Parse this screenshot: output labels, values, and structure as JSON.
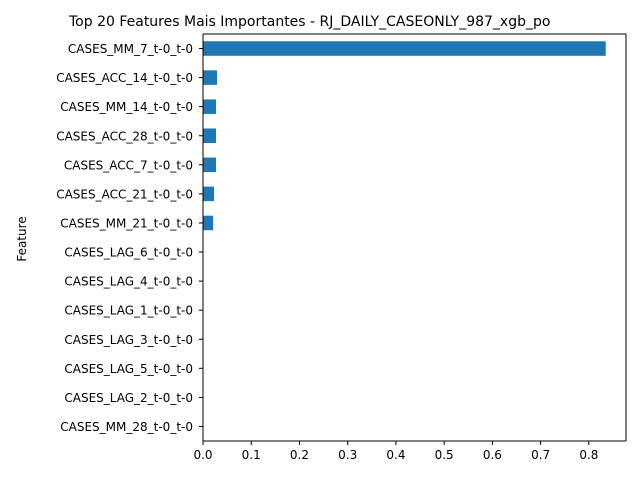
{
  "chart_data": {
    "type": "bar",
    "orientation": "horizontal",
    "title": "Top 20 Features Mais Importantes - RJ_DAILY_CASEONLY_987_xgb_po",
    "xlabel": "",
    "ylabel": "Feature",
    "categories": [
      "CASES_MM_7_t-0_t-0",
      "CASES_ACC_14_t-0_t-0",
      "CASES_MM_14_t-0_t-0",
      "CASES_ACC_28_t-0_t-0",
      "CASES_ACC_7_t-0_t-0",
      "CASES_ACC_21_t-0_t-0",
      "CASES_MM_21_t-0_t-0",
      "CASES_LAG_6_t-0_t-0",
      "CASES_LAG_4_t-0_t-0",
      "CASES_LAG_1_t-0_t-0",
      "CASES_LAG_3_t-0_t-0",
      "CASES_LAG_5_t-0_t-0",
      "CASES_LAG_2_t-0_t-0",
      "CASES_MM_28_t-0_t-0"
    ],
    "values": [
      0.835,
      0.029,
      0.027,
      0.027,
      0.027,
      0.023,
      0.021,
      0,
      0,
      0,
      0,
      0,
      0,
      0
    ],
    "xlim": [
      0,
      0.877
    ],
    "xticks": [
      0.0,
      0.1,
      0.2,
      0.3,
      0.4,
      0.5,
      0.6,
      0.7,
      0.8
    ],
    "xtick_labels": [
      "0.0",
      "0.1",
      "0.2",
      "0.3",
      "0.4",
      "0.5",
      "0.6",
      "0.7",
      "0.8"
    ],
    "grid": false,
    "legend": "none",
    "bar_color": "#1f77b4"
  }
}
